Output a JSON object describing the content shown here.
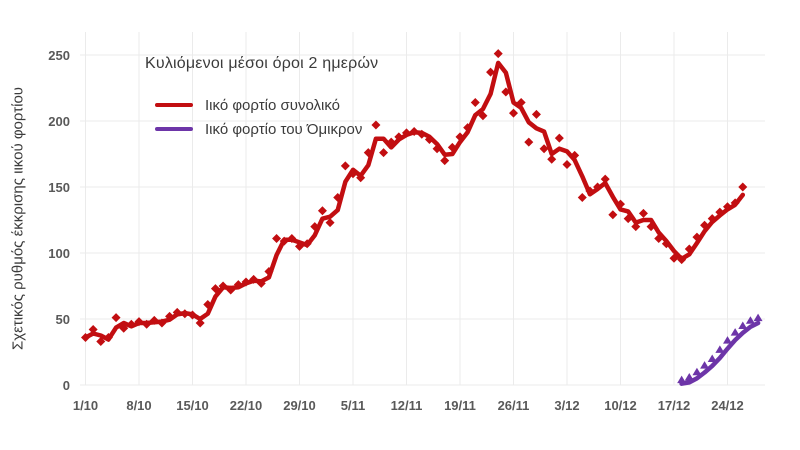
{
  "title": "Κυλιόμενοι μέσοι όροι 2 ημερών",
  "y_axis_title": "Σχετικός ρυθμός έκκρισης ιικού φορτίου",
  "legend": [
    {
      "label": "Ιικό φορτίο συνολικό",
      "color": "#c20e11"
    },
    {
      "label": "Ιικό φορτίο του Όμικρον",
      "color": "#6d35a8"
    }
  ],
  "colors": {
    "total_series": "#c20e11",
    "omicron_series": "#6d35a8",
    "gridline": "#ebebeb",
    "tick_text": "#595959",
    "background": "#ffffff"
  },
  "chart_data": {
    "type": "line",
    "title": "Κυλιόμενοι μέσοι όροι 2 ημερών",
    "xlabel": "",
    "ylabel": "Σχετικός ρυθμός έκκρισης ιικού φορτίου",
    "ylim": [
      0,
      250
    ],
    "y_ticks": [
      0,
      50,
      100,
      150,
      200,
      250
    ],
    "x_tick_labels": [
      "1/10",
      "8/10",
      "15/10",
      "22/10",
      "29/10",
      "5/11",
      "12/11",
      "19/11",
      "26/11",
      "3/12",
      "10/12",
      "17/12",
      "24/12"
    ],
    "x_tick_interval_days": 7,
    "frequency": "daily",
    "grid": true,
    "legend_position": "top-left",
    "smoothing": "line is 2-day rolling average of daily markers",
    "series": [
      {
        "name": "Ιικό φορτίο συνολικό",
        "color": "#c20e11",
        "marker": "diamond",
        "start_day": 0,
        "start_label": "1/10",
        "values": [
          36,
          42,
          33,
          36,
          51,
          43,
          46,
          48,
          46,
          49,
          47,
          52,
          55,
          54,
          53,
          47,
          61,
          73,
          75,
          72,
          76,
          78,
          80,
          77,
          86,
          111,
          109,
          111,
          105,
          107,
          120,
          132,
          123,
          142,
          166,
          160,
          157,
          176,
          197,
          176,
          184,
          188,
          191,
          192,
          190,
          186,
          179,
          170,
          180,
          188,
          195,
          214,
          204,
          237,
          251,
          222,
          206,
          214,
          184,
          205,
          179,
          171,
          187,
          167,
          174,
          142,
          147,
          150,
          156,
          129,
          137,
          126,
          120,
          130,
          120,
          111,
          107,
          96,
          95,
          103,
          112,
          121,
          126,
          131,
          135,
          138,
          150
        ]
      },
      {
        "name": "Ιικό φορτίο του Όμικρον",
        "color": "#6d35a8",
        "marker": "triangle",
        "start_day": 78,
        "start_label": "18/12",
        "values": [
          1,
          3,
          7,
          12,
          17,
          24,
          31,
          37,
          42,
          46,
          48
        ]
      }
    ]
  }
}
